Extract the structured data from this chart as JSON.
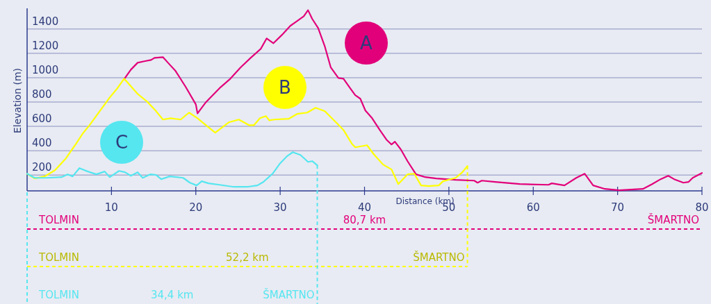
{
  "chart_data": {
    "type": "line",
    "xlabel": "Distance (km)",
    "ylabel": "Elevation (m)",
    "xlim": [
      0,
      80
    ],
    "xticks": [
      10,
      20,
      30,
      40,
      50,
      60,
      70,
      80
    ],
    "ylim": [
      70,
      1570
    ],
    "yticks": [
      200,
      400,
      600,
      800,
      1000,
      1200,
      1400
    ],
    "grid": "y",
    "legend": false,
    "marker": "none",
    "line_style": "solid",
    "series": [
      {
        "name": "A",
        "color": "#e2007a",
        "x": [
          11.5,
          12.3,
          13.1,
          13.9,
          14.7,
          15.1,
          16.1,
          16.7,
          17.6,
          18.8,
          20.0,
          20.2,
          21.2,
          22.0,
          22.8,
          24.1,
          25.3,
          26.5,
          27.7,
          28.4,
          29.2,
          30.2,
          31.2,
          32.0,
          32.8,
          33.3,
          33.8,
          34.5,
          35.3,
          36.0,
          36.9,
          37.5,
          38.3,
          38.9,
          39.5,
          40.1,
          40.9,
          41.8,
          42.6,
          43.2,
          43.6,
          44.3,
          45.1,
          46.1,
          47.2,
          48.5,
          50.8,
          53.0,
          53.4,
          53.9,
          55.5,
          58.4,
          61.8,
          62.2,
          63.7,
          65.1,
          66.1,
          67.1,
          68.5,
          70.2,
          73.0,
          74.1,
          75.1,
          76.0,
          76.7,
          77.8,
          78.4,
          78.9,
          80.0
        ],
        "values": [
          987,
          1066,
          1123,
          1135,
          1146,
          1163,
          1169,
          1123,
          1055,
          924,
          781,
          707,
          799,
          856,
          913,
          992,
          1084,
          1163,
          1237,
          1323,
          1283,
          1351,
          1426,
          1465,
          1505,
          1555,
          1483,
          1408,
          1255,
          1084,
          998,
          992,
          913,
          856,
          827,
          730,
          667,
          571,
          491,
          451,
          474,
          411,
          314,
          206,
          183,
          172,
          160,
          154,
          137,
          154,
          143,
          126,
          120,
          132,
          115,
          177,
          211,
          115,
          86,
          75,
          86,
          126,
          166,
          194,
          166,
          137,
          143,
          177,
          217
        ]
      },
      {
        "name": "B",
        "color": "#ffff00",
        "x": [
          0,
          0.9,
          2.1,
          3.3,
          4.6,
          5.8,
          6.6,
          7.4,
          8.6,
          9.8,
          10.7,
          11.5,
          13.1,
          14.3,
          15.3,
          16.1,
          17.0,
          18.2,
          19.2,
          20.2,
          21.2,
          22.3,
          23.9,
          25.1,
          26.3,
          26.9,
          27.6,
          28.3,
          28.7,
          29.3,
          31.0,
          32.0,
          33.2,
          34.2,
          35.3,
          36.7,
          37.5,
          38.5,
          38.9,
          40.3,
          41.1,
          42.2,
          43.2,
          44.0,
          45.1,
          45.9,
          46.7,
          47.6,
          48.8,
          49.3,
          50.8,
          51.6,
          52.2
        ],
        "values": [
          210,
          172,
          189,
          240,
          337,
          457,
          542,
          610,
          724,
          838,
          913,
          992,
          867,
          799,
          724,
          656,
          667,
          656,
          713,
          667,
          610,
          548,
          633,
          656,
          610,
          610,
          667,
          685,
          650,
          656,
          662,
          702,
          713,
          753,
          724,
          628,
          571,
          457,
          428,
          445,
          371,
          286,
          246,
          126,
          206,
          211,
          115,
          109,
          115,
          149,
          177,
          223,
          274
        ]
      },
      {
        "name": "C",
        "color": "#55e6f0",
        "x": [
          0,
          0.9,
          2.3,
          4.1,
          4.8,
          5.4,
          6.2,
          7.2,
          8.2,
          9.2,
          9.8,
          10.9,
          11.6,
          12.3,
          13.1,
          13.7,
          14.6,
          15.3,
          15.9,
          16.9,
          18.5,
          19.3,
          20.1,
          20.7,
          21.5,
          22.8,
          24.5,
          26.1,
          27.3,
          28.0,
          29.1,
          30.0,
          30.8,
          31.5,
          32.4,
          33.3,
          33.8,
          34.4
        ],
        "values": [
          211,
          177,
          177,
          183,
          206,
          189,
          257,
          229,
          206,
          229,
          183,
          234,
          223,
          194,
          223,
          177,
          206,
          200,
          166,
          189,
          177,
          137,
          115,
          149,
          132,
          120,
          103,
          103,
          115,
          143,
          211,
          297,
          354,
          388,
          365,
          308,
          314,
          280
        ]
      }
    ],
    "annotations": [
      "TOLMIN",
      "80,7 km",
      "ŠMARTNO",
      "TOLMIN",
      "52,2 km",
      {
        "text": "ŠMARTNO",
        "x": 52.2,
        "y": 274
      },
      "TOLMIN",
      "34,4 km",
      {
        "text": "ŠMARTNO",
        "x": 34.4,
        "y": 280
      }
    ]
  }
}
